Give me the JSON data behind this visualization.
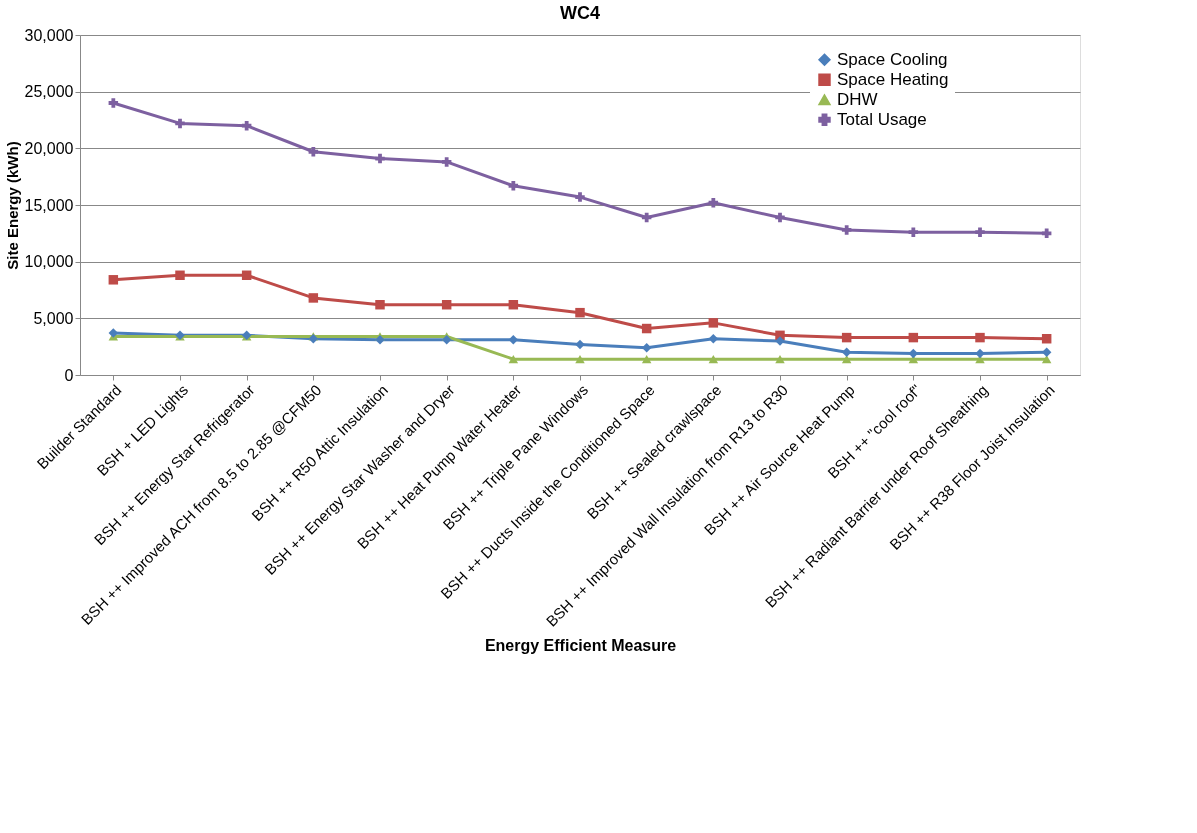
{
  "chart_data": {
    "type": "line",
    "title": "WC4",
    "xlabel": "Energy Efficient Measure",
    "ylabel": "Site Energy (kWh)",
    "categories": [
      "Builder Standard",
      "BSH + LED Lights",
      "BSH ++ Energy Star Refrigerator",
      "BSH ++ Improved ACH from 8.5 to 2.85 @CFM50",
      "BSH ++ R50 Attic Insulation",
      "BSH ++ Energy Star Washer and Dryer",
      "BSH ++  Heat Pump Water Heater",
      "BSH ++ Triple Pane Windows",
      "BSH ++ Ducts Inside the  Conditioned Space",
      "BSH ++ Sealed crawlspace",
      "BSH ++ Improved Wall Insulation from R13 to R30",
      "BSH ++ Air Source Heat Pump",
      "BSH ++ \"cool roof\"",
      "BSH ++ Radiant Barrier under Roof Sheathing",
      "BSH ++ R38 Floor Joist Insulation"
    ],
    "series": [
      {
        "name": "Space Cooling",
        "color": "#4a7ebb",
        "marker": "diamond",
        "values": [
          3700,
          3500,
          3500,
          3200,
          3100,
          3100,
          3100,
          2700,
          2400,
          3200,
          3000,
          2000,
          1900,
          1900,
          2000
        ]
      },
      {
        "name": "Space Heating",
        "color": "#be4b48",
        "marker": "square",
        "values": [
          8400,
          8800,
          8800,
          6800,
          6200,
          6200,
          6200,
          5500,
          4100,
          4600,
          3500,
          3300,
          3300,
          3300,
          3200
        ]
      },
      {
        "name": "DHW",
        "color": "#98b954",
        "marker": "triangle",
        "values": [
          3400,
          3400,
          3400,
          3400,
          3400,
          3400,
          1400,
          1400,
          1400,
          1400,
          1400,
          1400,
          1400,
          1400,
          1400
        ]
      },
      {
        "name": "Total Usage",
        "color": "#7d60a0",
        "marker": "cross",
        "values": [
          24000,
          22200,
          22000,
          19700,
          19100,
          18800,
          16700,
          15700,
          13900,
          15200,
          13900,
          12800,
          12600,
          12600,
          12500
        ]
      }
    ],
    "ylim": [
      0,
      30000
    ],
    "yticks": [
      0,
      {
        "value": 5000,
        "label": "5,000"
      },
      {
        "value": 10000,
        "label": "10,000"
      },
      {
        "value": 15000,
        "label": "15,000"
      },
      {
        "value": 20000,
        "label": "20,000"
      },
      {
        "value": 25000,
        "label": "25,000"
      },
      {
        "value": 30000,
        "label": "30,000"
      }
    ],
    "grid": "y",
    "legend": "top right"
  }
}
